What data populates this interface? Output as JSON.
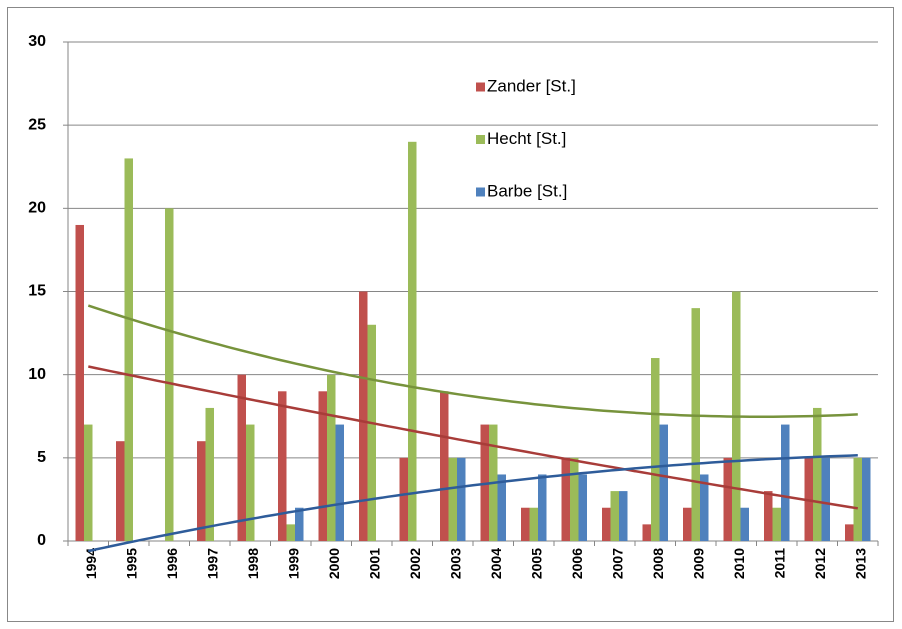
{
  "chart_data": {
    "type": "bar",
    "categories": [
      "1994",
      "1995",
      "1996",
      "1997",
      "1998",
      "1999",
      "2000",
      "2001",
      "2002",
      "2003",
      "2004",
      "2005",
      "2006",
      "2007",
      "2008",
      "2009",
      "2010",
      "2011",
      "2012",
      "2013"
    ],
    "series": [
      {
        "name": "Zander [St.]",
        "color": "#c0504d",
        "trend_color": "#a83c39",
        "values": [
          19,
          6,
          0,
          6,
          10,
          9,
          9,
          15,
          5,
          9,
          7,
          2,
          5,
          2,
          1,
          2,
          5,
          3,
          5,
          1
        ]
      },
      {
        "name": "Hecht [St.]",
        "color": "#9bbb59",
        "trend_color": "#77933c",
        "values": [
          7,
          23,
          20,
          8,
          7,
          1,
          10,
          13,
          24,
          5,
          7,
          2,
          5,
          3,
          11,
          14,
          15,
          2,
          8,
          5
        ]
      },
      {
        "name": "Barbe [St.]",
        "color": "#4f81bd",
        "trend_color": "#2e5c9a",
        "values": [
          0,
          0,
          0,
          0,
          0,
          2,
          7,
          0,
          0,
          5,
          4,
          4,
          4,
          3,
          7,
          4,
          2,
          7,
          5,
          5
        ]
      }
    ],
    "ylim": [
      0,
      30
    ],
    "yticks": [
      0,
      5,
      10,
      15,
      20,
      25,
      30
    ],
    "grid": true,
    "legend": "upper right",
    "trendline": "polynomial-2"
  }
}
